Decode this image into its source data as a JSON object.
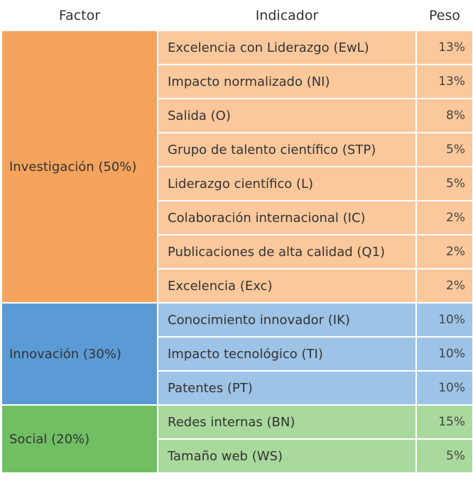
{
  "header": {
    "factor": "Factor",
    "indicator": "Indicador",
    "weight": "Peso"
  },
  "colors": {
    "investigacion_factor": "#f5a35d",
    "investigacion_row": "#fbc89b",
    "innovacion_factor": "#5b9bd5",
    "innovacion_row": "#9dc3e6",
    "social_factor": "#70bf63",
    "social_row": "#a9d99c"
  },
  "groups": [
    {
      "factor": "Investigación (50%)",
      "factor_color": "#f5a35d",
      "row_color": "#fbc89b",
      "rows": [
        {
          "indicator": "Excelencia con Liderazgo (EwL)",
          "weight": "13%"
        },
        {
          "indicator": "Impacto normalizado (NI)",
          "weight": "13%"
        },
        {
          "indicator": "Salida (O)",
          "weight": "8%"
        },
        {
          "indicator": "Grupo de talento científico (STP)",
          "weight": "5%"
        },
        {
          "indicator": "Liderazgo científico (L)",
          "weight": "5%"
        },
        {
          "indicator": "Colaboración internacional (IC)",
          "weight": "2%"
        },
        {
          "indicator": "Publicaciones de alta calidad (Q1)",
          "weight": "2%"
        },
        {
          "indicator": "Excelencia (Exc)",
          "weight": "2%"
        }
      ]
    },
    {
      "factor": "Innovación (30%)",
      "factor_color": "#5b9bd5",
      "row_color": "#9dc3e6",
      "rows": [
        {
          "indicator": "Conocimiento innovador (IK)",
          "weight": "10%"
        },
        {
          "indicator": "Impacto tecnológico (TI)",
          "weight": "10%"
        },
        {
          "indicator": "Patentes (PT)",
          "weight": "10%"
        }
      ]
    },
    {
      "factor": "Social (20%)",
      "factor_color": "#70bf63",
      "row_color": "#a9d99c",
      "rows": [
        {
          "indicator": "Redes internas (BN)",
          "weight": "15%"
        },
        {
          "indicator": "Tamaño web (WS)",
          "weight": "5%"
        }
      ]
    }
  ]
}
